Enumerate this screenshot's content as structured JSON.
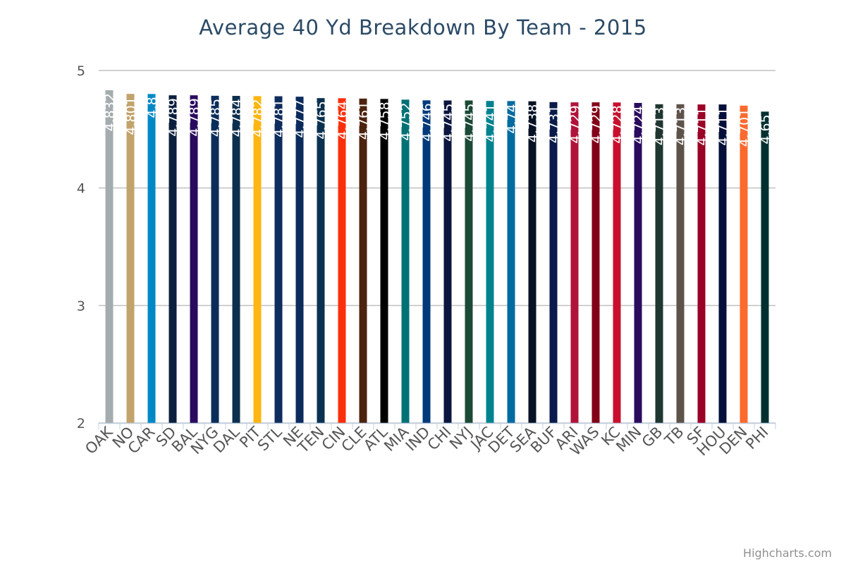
{
  "chart_data": {
    "type": "bar",
    "title": "Average 40 Yd Breakdown By Team - 2015",
    "ylim": [
      2,
      5
    ],
    "yticks": [
      2,
      3,
      4,
      5
    ],
    "grid": true,
    "categories": [
      "OAK",
      "NO",
      "CAR",
      "SD",
      "BAL",
      "NYG",
      "DAL",
      "PIT",
      "STL",
      "NE",
      "TEN",
      "CIN",
      "CLE",
      "ATL",
      "MIA",
      "IND",
      "CHI",
      "NYJ",
      "JAC",
      "DET",
      "SEA",
      "BUF",
      "ARI",
      "WAS",
      "KC",
      "MIN",
      "GB",
      "TB",
      "SF",
      "HOU",
      "DEN",
      "PHI"
    ],
    "values": [
      4.832,
      4.801,
      4.8,
      4.789,
      4.789,
      4.785,
      4.784,
      4.782,
      4.781,
      4.777,
      4.765,
      4.764,
      4.761,
      4.758,
      4.752,
      4.746,
      4.745,
      4.745,
      4.741,
      4.74,
      4.738,
      4.731,
      4.729,
      4.729,
      4.728,
      4.724,
      4.713,
      4.713,
      4.711,
      4.711,
      4.701,
      4.65
    ],
    "labels": [
      "4.832",
      "4.801",
      "4.8",
      "4.789",
      "4.789",
      "4.785",
      "4.784",
      "4.782",
      "4.781",
      "4.777",
      "4.765",
      "4.764",
      "4.761",
      "4.758",
      "4.752",
      "4.746",
      "4.745",
      "4.745",
      "4.741",
      "4.74",
      "4.738",
      "4.731",
      "4.729",
      "4.729",
      "4.728",
      "4.724",
      "4.713",
      "4.713",
      "4.711",
      "4.711",
      "4.701",
      "4.65"
    ],
    "colors": [
      "#a5acaf",
      "#c2a36b",
      "#0088c6",
      "#0c1f3d",
      "#2a0a5e",
      "#0b2d5a",
      "#0d2f4f",
      "#ffb612",
      "#0f2c5e",
      "#0c2b5d",
      "#0b3150",
      "#fb2f0a",
      "#4c230f",
      "#000000",
      "#007174",
      "#013a7a",
      "#0b1640",
      "#1b4a36",
      "#00838f",
      "#006ba1",
      "#071324",
      "#0a1a4a",
      "#b0133a",
      "#820018",
      "#c8102e",
      "#2a0b5e",
      "#203630",
      "#5e534b",
      "#9b0027",
      "#041039",
      "#fc6a2e",
      "#003030"
    ],
    "credits": "Highcharts.com"
  }
}
